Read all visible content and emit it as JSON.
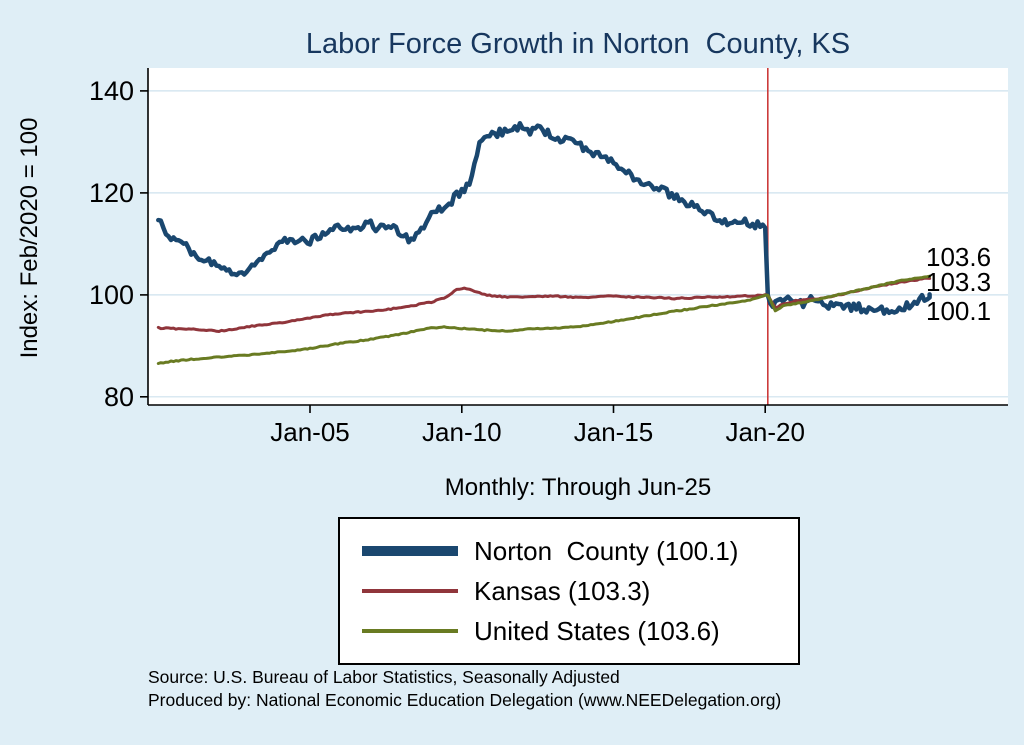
{
  "page": {
    "title": "Labor Force Growth in Norton  County, KS",
    "subtitle": "Monthly: Through Jun-25",
    "ylabel": "Index: Feb/2020 = 100",
    "source_line1": "Source: U.S. Bureau of Labor Statistics, Seasonally Adjusted",
    "source_line2": "Produced by: National Economic Education Delegation (www.NEEDelegation.org)"
  },
  "legend": {
    "entries": [
      {
        "id": "norton-county",
        "label": "Norton  County (100.1)",
        "color": "#1a476f",
        "thickness": 10
      },
      {
        "id": "kansas",
        "label": "Kansas (103.3)",
        "color": "#90353b",
        "thickness": 4
      },
      {
        "id": "united-states",
        "label": "United States (103.6)",
        "color": "#697b22",
        "thickness": 4
      }
    ]
  },
  "end_labels": [
    "103.6",
    "103.3",
    "100.1"
  ],
  "chart_data": {
    "type": "line",
    "title": "Labor Force Growth in Norton  County, KS",
    "subtitle": "Monthly: Through Jun-25",
    "xlabel": "",
    "ylabel": "Index: Feb/2020 = 100",
    "xlim": [
      1999.66,
      2028.0
    ],
    "ylim": [
      78.4,
      144.5
    ],
    "grid": true,
    "grid_color": "#cde2ee",
    "legend_position": "bottom",
    "yticks": [
      80,
      100,
      120,
      140
    ],
    "xticks": [
      {
        "value": 2005.0,
        "label": "Jan-05"
      },
      {
        "value": 2010.0,
        "label": "Jan-10"
      },
      {
        "value": 2015.0,
        "label": "Jan-15"
      },
      {
        "value": 2020.0,
        "label": "Jan-20"
      }
    ],
    "vline": {
      "x": 2020.083,
      "color": "#cc3b3b",
      "meaning": "Feb-2020 reference"
    },
    "series": [
      {
        "id": "norton-county",
        "name": "Norton  County (100.1)",
        "color": "#1a476f",
        "width": 4.5,
        "noise": 0.8,
        "final_value": 100.1,
        "points": [
          [
            2000.0,
            114.5
          ],
          [
            2000.25,
            112.5
          ],
          [
            2000.5,
            111.0
          ],
          [
            2000.75,
            110.0
          ],
          [
            2001.0,
            109.0
          ],
          [
            2001.33,
            107.5
          ],
          [
            2001.67,
            106.5
          ],
          [
            2002.0,
            105.5
          ],
          [
            2002.33,
            104.8
          ],
          [
            2002.67,
            104.3
          ],
          [
            2003.0,
            105.0
          ],
          [
            2003.33,
            106.5
          ],
          [
            2003.67,
            108.5
          ],
          [
            2004.0,
            110.5
          ],
          [
            2004.33,
            111.0
          ],
          [
            2004.67,
            110.8
          ],
          [
            2005.0,
            110.5
          ],
          [
            2005.33,
            111.5
          ],
          [
            2005.67,
            112.5
          ],
          [
            2006.0,
            113.5
          ],
          [
            2006.33,
            113.0
          ],
          [
            2006.67,
            113.2
          ],
          [
            2007.0,
            114.0
          ],
          [
            2007.25,
            112.8
          ],
          [
            2007.5,
            113.8
          ],
          [
            2007.75,
            113.0
          ],
          [
            2008.0,
            112.0
          ],
          [
            2008.25,
            110.8
          ],
          [
            2008.5,
            112.0
          ],
          [
            2008.75,
            113.5
          ],
          [
            2009.0,
            115.5
          ],
          [
            2009.33,
            117.0
          ],
          [
            2009.67,
            118.5
          ],
          [
            2010.0,
            120.5
          ],
          [
            2010.25,
            121.5
          ],
          [
            2010.42,
            126.0
          ],
          [
            2010.58,
            129.5
          ],
          [
            2010.75,
            130.5
          ],
          [
            2011.0,
            131.5
          ],
          [
            2011.33,
            132.0
          ],
          [
            2011.67,
            132.5
          ],
          [
            2012.0,
            133.0
          ],
          [
            2012.25,
            131.8
          ],
          [
            2012.5,
            132.8
          ],
          [
            2012.75,
            132.0
          ],
          [
            2013.0,
            131.2
          ],
          [
            2013.33,
            130.5
          ],
          [
            2013.67,
            130.0
          ],
          [
            2014.0,
            128.8
          ],
          [
            2014.33,
            127.8
          ],
          [
            2014.67,
            127.0
          ],
          [
            2015.0,
            126.0
          ],
          [
            2015.33,
            124.5
          ],
          [
            2015.67,
            123.0
          ],
          [
            2016.0,
            121.8
          ],
          [
            2016.33,
            121.0
          ],
          [
            2016.67,
            120.5
          ],
          [
            2017.0,
            119.2
          ],
          [
            2017.33,
            118.3
          ],
          [
            2017.67,
            117.5
          ],
          [
            2018.0,
            116.2
          ],
          [
            2018.33,
            115.2
          ],
          [
            2018.67,
            114.5
          ],
          [
            2019.0,
            113.8
          ],
          [
            2019.33,
            114.2
          ],
          [
            2019.67,
            113.8
          ],
          [
            2020.0,
            113.3
          ],
          [
            2020.08,
            100.0
          ],
          [
            2020.25,
            97.5
          ],
          [
            2020.42,
            98.5
          ],
          [
            2020.58,
            99.5
          ],
          [
            2020.75,
            99.0
          ],
          [
            2021.0,
            99.5
          ],
          [
            2021.25,
            98.0
          ],
          [
            2021.5,
            99.0
          ],
          [
            2021.75,
            98.5
          ],
          [
            2022.0,
            97.8
          ],
          [
            2022.25,
            98.5
          ],
          [
            2022.5,
            98.0
          ],
          [
            2022.75,
            97.5
          ],
          [
            2023.0,
            97.8
          ],
          [
            2023.25,
            97.0
          ],
          [
            2023.5,
            96.8
          ],
          [
            2023.75,
            97.2
          ],
          [
            2024.0,
            97.0
          ],
          [
            2024.25,
            96.5
          ],
          [
            2024.5,
            97.5
          ],
          [
            2024.75,
            98.0
          ],
          [
            2025.0,
            99.0
          ],
          [
            2025.25,
            99.5
          ],
          [
            2025.417,
            100.1
          ]
        ]
      },
      {
        "id": "kansas",
        "name": "Kansas (103.3)",
        "color": "#90353b",
        "width": 3,
        "noise": 0.12,
        "final_value": 103.3,
        "points": [
          [
            2000.0,
            93.5
          ],
          [
            2000.5,
            93.4
          ],
          [
            2001.0,
            93.3
          ],
          [
            2001.5,
            93.1
          ],
          [
            2002.0,
            92.9
          ],
          [
            2002.5,
            93.2
          ],
          [
            2003.0,
            93.8
          ],
          [
            2003.5,
            94.2
          ],
          [
            2004.0,
            94.5
          ],
          [
            2004.5,
            95.0
          ],
          [
            2005.0,
            95.5
          ],
          [
            2005.5,
            96.0
          ],
          [
            2006.0,
            96.4
          ],
          [
            2006.5,
            96.6
          ],
          [
            2007.0,
            96.8
          ],
          [
            2007.5,
            97.1
          ],
          [
            2008.0,
            97.5
          ],
          [
            2008.5,
            98.0
          ],
          [
            2009.0,
            98.6
          ],
          [
            2009.5,
            99.6
          ],
          [
            2009.83,
            101.0
          ],
          [
            2010.08,
            101.4
          ],
          [
            2010.33,
            101.0
          ],
          [
            2010.67,
            100.2
          ],
          [
            2011.0,
            99.8
          ],
          [
            2011.5,
            99.6
          ],
          [
            2012.0,
            99.5
          ],
          [
            2012.5,
            99.7
          ],
          [
            2013.0,
            99.8
          ],
          [
            2013.5,
            99.6
          ],
          [
            2014.0,
            99.5
          ],
          [
            2014.5,
            99.7
          ],
          [
            2015.0,
            99.8
          ],
          [
            2015.5,
            99.6
          ],
          [
            2016.0,
            99.5
          ],
          [
            2016.5,
            99.4
          ],
          [
            2017.0,
            99.3
          ],
          [
            2017.5,
            99.4
          ],
          [
            2018.0,
            99.5
          ],
          [
            2018.5,
            99.6
          ],
          [
            2019.0,
            99.7
          ],
          [
            2019.5,
            99.8
          ],
          [
            2020.08,
            100.0
          ],
          [
            2020.33,
            97.4
          ],
          [
            2020.58,
            98.2
          ],
          [
            2021.0,
            98.8
          ],
          [
            2021.5,
            99.1
          ],
          [
            2022.0,
            99.5
          ],
          [
            2022.5,
            100.1
          ],
          [
            2023.0,
            100.8
          ],
          [
            2023.5,
            101.4
          ],
          [
            2024.0,
            102.0
          ],
          [
            2024.5,
            102.5
          ],
          [
            2025.0,
            103.0
          ],
          [
            2025.417,
            103.3
          ]
        ]
      },
      {
        "id": "united-states",
        "name": "United States (103.6)",
        "color": "#697b22",
        "width": 3,
        "noise": 0.1,
        "final_value": 103.6,
        "points": [
          [
            2000.0,
            86.6
          ],
          [
            2000.5,
            87.0
          ],
          [
            2001.0,
            87.3
          ],
          [
            2001.5,
            87.6
          ],
          [
            2002.0,
            87.8
          ],
          [
            2002.5,
            88.0
          ],
          [
            2003.0,
            88.2
          ],
          [
            2003.5,
            88.5
          ],
          [
            2004.0,
            88.8
          ],
          [
            2004.5,
            89.1
          ],
          [
            2005.0,
            89.5
          ],
          [
            2005.5,
            90.0
          ],
          [
            2006.0,
            90.5
          ],
          [
            2006.5,
            90.9
          ],
          [
            2007.0,
            91.3
          ],
          [
            2007.5,
            91.8
          ],
          [
            2008.0,
            92.3
          ],
          [
            2008.5,
            93.0
          ],
          [
            2009.0,
            93.5
          ],
          [
            2009.5,
            93.7
          ],
          [
            2010.0,
            93.4
          ],
          [
            2010.5,
            93.2
          ],
          [
            2011.0,
            93.0
          ],
          [
            2011.5,
            92.9
          ],
          [
            2012.0,
            93.2
          ],
          [
            2012.5,
            93.4
          ],
          [
            2013.0,
            93.5
          ],
          [
            2013.5,
            93.6
          ],
          [
            2014.0,
            93.9
          ],
          [
            2014.5,
            94.3
          ],
          [
            2015.0,
            94.8
          ],
          [
            2015.5,
            95.3
          ],
          [
            2016.0,
            95.8
          ],
          [
            2016.5,
            96.3
          ],
          [
            2017.0,
            96.8
          ],
          [
            2017.5,
            97.2
          ],
          [
            2018.0,
            97.7
          ],
          [
            2018.5,
            98.1
          ],
          [
            2019.0,
            98.5
          ],
          [
            2019.5,
            99.0
          ],
          [
            2020.08,
            100.0
          ],
          [
            2020.33,
            96.9
          ],
          [
            2020.58,
            97.8
          ],
          [
            2021.0,
            98.3
          ],
          [
            2021.5,
            98.8
          ],
          [
            2022.0,
            99.5
          ],
          [
            2022.5,
            100.2
          ],
          [
            2023.0,
            100.8
          ],
          [
            2023.5,
            101.5
          ],
          [
            2024.0,
            102.2
          ],
          [
            2024.5,
            102.8
          ],
          [
            2025.0,
            103.3
          ],
          [
            2025.417,
            103.6
          ]
        ]
      }
    ]
  }
}
